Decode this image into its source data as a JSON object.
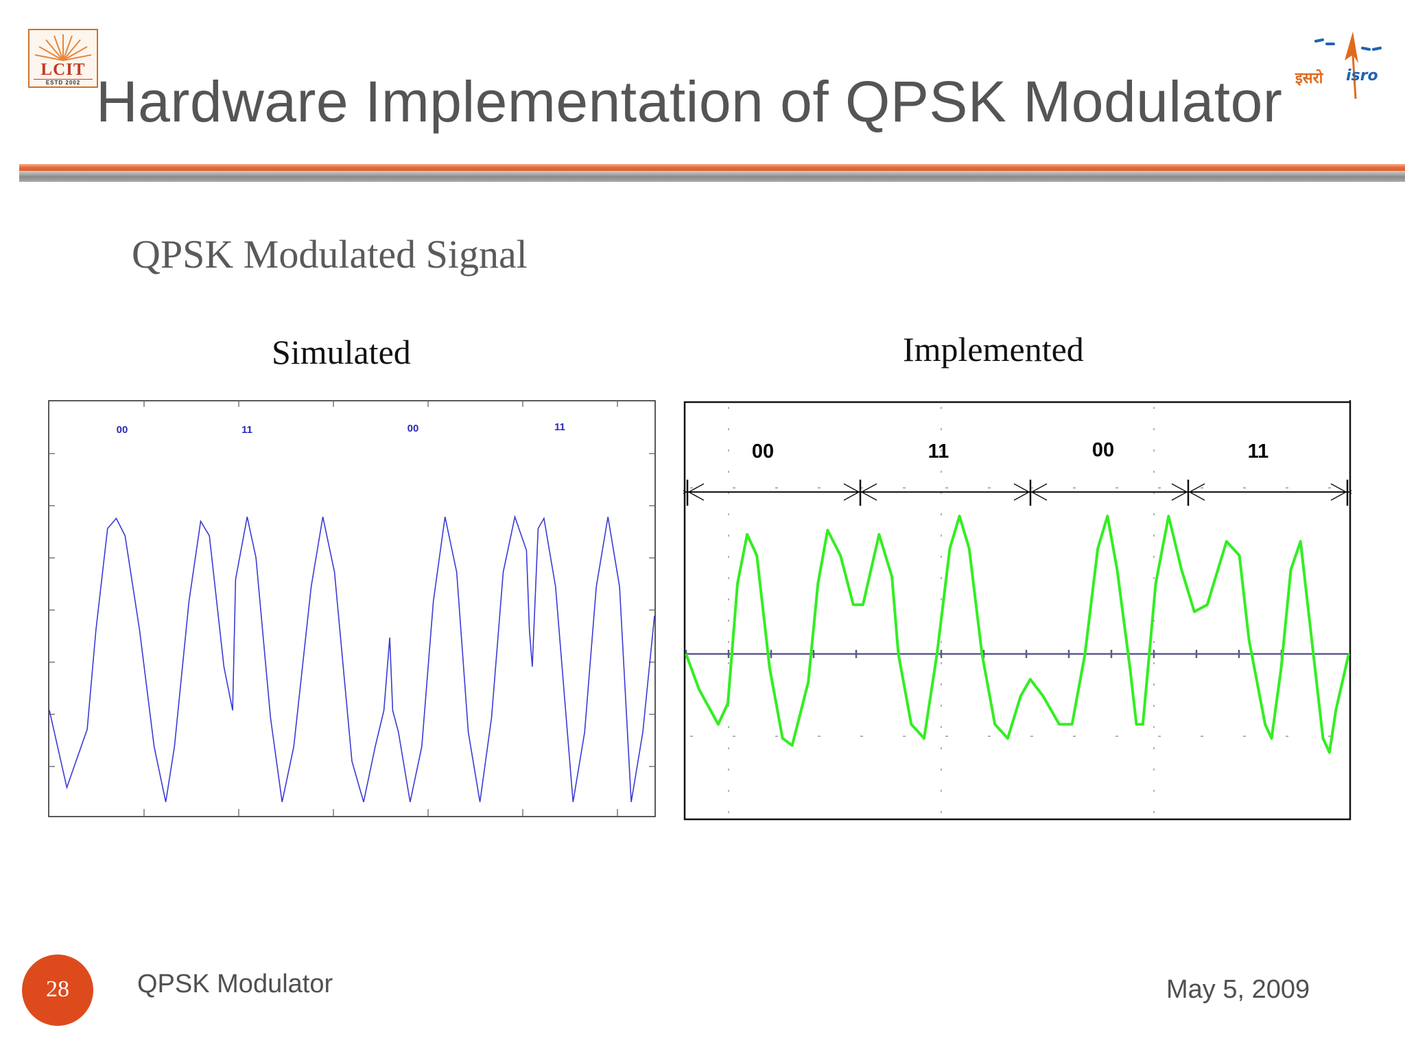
{
  "slide": {
    "title": "Hardware Implementation of QPSK Modulator",
    "subtitle": "QPSK Modulated Signal",
    "page_number": "28",
    "footer_title": "QPSK Modulator",
    "footer_date": "May 5, 2009"
  },
  "logos": {
    "left_text": "LCIT",
    "left_estd": "ESTD   2002",
    "right_hindi": "इसरो",
    "right_latin": "isro"
  },
  "colors": {
    "accent_orange": "#dd4b1d",
    "simulated_trace": "#3a3ad6",
    "implemented_trace": "#33ee22"
  },
  "chart_data": [
    {
      "type": "line",
      "panel_title": "Simulated",
      "symbol_labels": [
        "00",
        "11",
        "00",
        "11"
      ],
      "series": [
        {
          "points": [
            [
              0,
              -0.35
            ],
            [
              0.03,
              -0.88
            ],
            [
              0.065,
              -0.48
            ],
            [
              0.08,
              0.2
            ],
            [
              0.1,
              0.9
            ],
            [
              0.115,
              0.97
            ],
            [
              0.13,
              0.85
            ],
            [
              0.155,
              0.2
            ],
            [
              0.18,
              -0.6
            ],
            [
              0.2,
              -0.98
            ],
            [
              0.215,
              -0.6
            ],
            [
              0.24,
              0.4
            ],
            [
              0.26,
              0.95
            ],
            [
              0.275,
              0.85
            ],
            [
              0.3,
              -0.05
            ],
            [
              0.315,
              -0.35
            ],
            [
              0.32,
              0.55
            ],
            [
              0.34,
              0.98
            ],
            [
              0.355,
              0.7
            ],
            [
              0.38,
              -0.4
            ],
            [
              0.4,
              -0.98
            ],
            [
              0.42,
              -0.6
            ],
            [
              0.45,
              0.5
            ],
            [
              0.47,
              0.98
            ],
            [
              0.49,
              0.6
            ],
            [
              0.52,
              -0.7
            ],
            [
              0.54,
              -0.98
            ],
            [
              0.56,
              -0.6
            ],
            [
              0.575,
              -0.35
            ],
            [
              0.585,
              0.15
            ],
            [
              0.59,
              -0.35
            ],
            [
              0.6,
              -0.5
            ],
            [
              0.62,
              -0.98
            ],
            [
              0.64,
              -0.6
            ],
            [
              0.66,
              0.4
            ],
            [
              0.68,
              0.98
            ],
            [
              0.7,
              0.6
            ],
            [
              0.72,
              -0.5
            ],
            [
              0.74,
              -0.98
            ],
            [
              0.76,
              -0.4
            ],
            [
              0.78,
              0.6
            ],
            [
              0.8,
              0.98
            ],
            [
              0.82,
              0.75
            ],
            [
              0.825,
              0.2
            ],
            [
              0.83,
              -0.05
            ],
            [
              0.84,
              0.9
            ],
            [
              0.85,
              0.97
            ],
            [
              0.87,
              0.5
            ],
            [
              0.9,
              -0.98
            ],
            [
              0.92,
              -0.5
            ],
            [
              0.94,
              0.5
            ],
            [
              0.96,
              0.98
            ],
            [
              0.98,
              0.5
            ],
            [
              1.0,
              -0.98
            ],
            [
              1.02,
              -0.5
            ],
            [
              1.04,
              0.3
            ]
          ]
        }
      ]
    },
    {
      "type": "line",
      "panel_title": "Implemented",
      "symbol_labels": [
        "00",
        "11",
        "00",
        "11"
      ],
      "series": [
        {
          "points": [
            [
              0,
              0.0
            ],
            [
              0.02,
              -0.25
            ],
            [
              0.05,
              -0.5
            ],
            [
              0.065,
              -0.35
            ],
            [
              0.08,
              0.5
            ],
            [
              0.095,
              0.85
            ],
            [
              0.11,
              0.7
            ],
            [
              0.13,
              -0.1
            ],
            [
              0.15,
              -0.6
            ],
            [
              0.165,
              -0.65
            ],
            [
              0.19,
              -0.2
            ],
            [
              0.205,
              0.5
            ],
            [
              0.22,
              0.88
            ],
            [
              0.24,
              0.7
            ],
            [
              0.26,
              0.35
            ],
            [
              0.275,
              0.35
            ],
            [
              0.3,
              0.85
            ],
            [
              0.32,
              0.55
            ],
            [
              0.33,
              0.0
            ],
            [
              0.35,
              -0.5
            ],
            [
              0.37,
              -0.6
            ],
            [
              0.39,
              0.0
            ],
            [
              0.41,
              0.75
            ],
            [
              0.425,
              0.98
            ],
            [
              0.44,
              0.75
            ],
            [
              0.46,
              0.0
            ],
            [
              0.48,
              -0.5
            ],
            [
              0.5,
              -0.6
            ],
            [
              0.52,
              -0.3
            ],
            [
              0.535,
              -0.18
            ],
            [
              0.555,
              -0.3
            ],
            [
              0.58,
              -0.5
            ],
            [
              0.6,
              -0.5
            ],
            [
              0.62,
              0.0
            ],
            [
              0.64,
              0.75
            ],
            [
              0.655,
              0.98
            ],
            [
              0.67,
              0.6
            ],
            [
              0.69,
              -0.1
            ],
            [
              0.7,
              -0.5
            ],
            [
              0.71,
              -0.5
            ],
            [
              0.73,
              0.5
            ],
            [
              0.75,
              0.98
            ],
            [
              0.77,
              0.6
            ],
            [
              0.79,
              0.3
            ],
            [
              0.81,
              0.35
            ],
            [
              0.84,
              0.8
            ],
            [
              0.86,
              0.7
            ],
            [
              0.875,
              0.1
            ],
            [
              0.9,
              -0.5
            ],
            [
              0.91,
              -0.6
            ],
            [
              0.925,
              -0.1
            ],
            [
              0.94,
              0.6
            ],
            [
              0.955,
              0.8
            ],
            [
              0.97,
              0.2
            ],
            [
              0.99,
              -0.6
            ],
            [
              1.0,
              -0.7
            ],
            [
              1.01,
              -0.4
            ],
            [
              1.03,
              0.0
            ]
          ]
        }
      ]
    }
  ]
}
